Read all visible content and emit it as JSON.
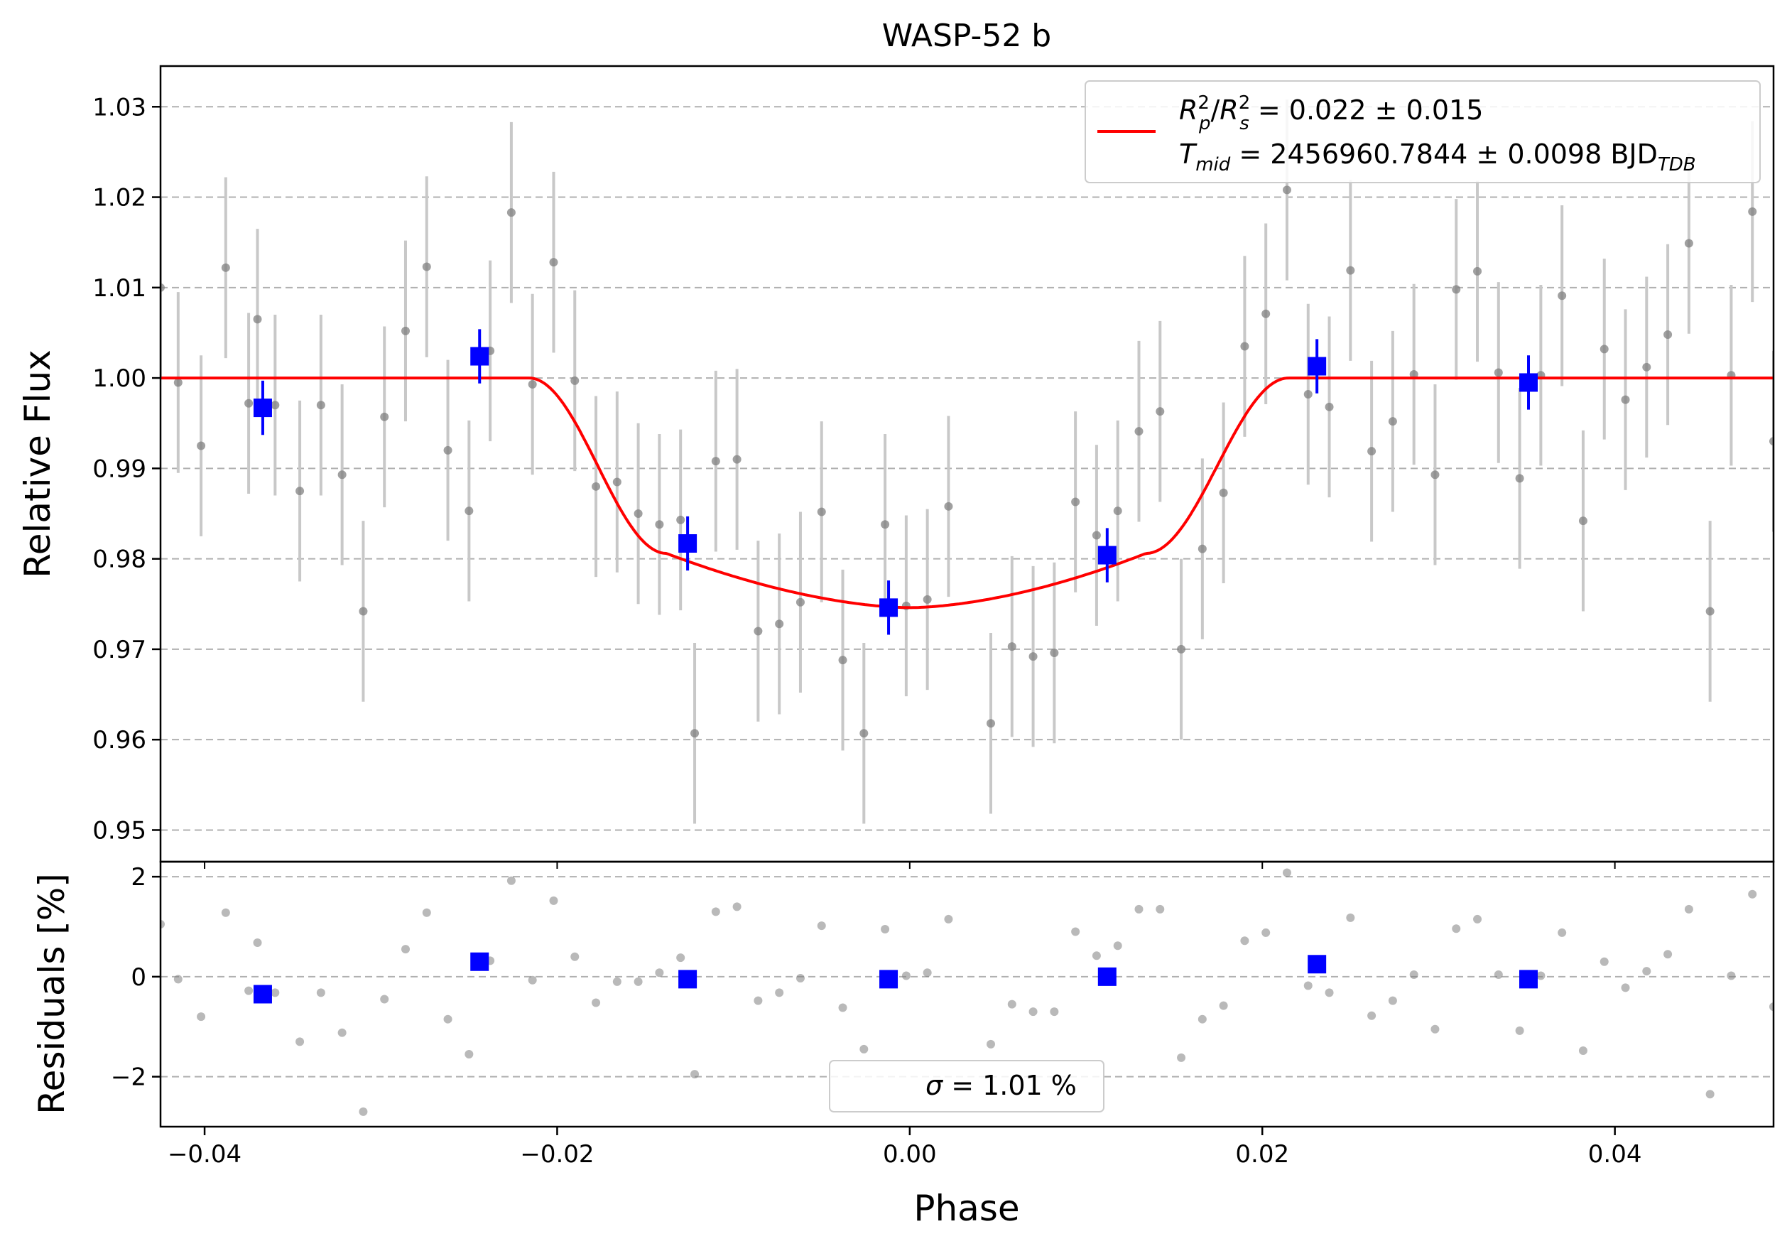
{
  "chart_data": [
    {
      "type": "scatter",
      "panel": "light-curve",
      "title": "WASP-52 b",
      "xlabel": "Phase",
      "ylabel": "Relative Flux",
      "xlim": [
        -0.0425,
        0.049
      ],
      "ylim": [
        0.9465,
        1.0345
      ],
      "yticks": [
        0.95,
        0.96,
        0.97,
        0.98,
        0.99,
        1.0,
        1.01,
        1.02,
        1.03
      ],
      "ytick_labels": [
        "0.95",
        "0.96",
        "0.97",
        "0.98",
        "0.99",
        "1.00",
        "1.01",
        "1.02",
        "1.03"
      ],
      "grid": "horizontal dashed",
      "legend": {
        "placement": "top-right",
        "line1_prefix": "R",
        "line1_text": "= 0.022 ± 0.015",
        "line2_prefix": "T",
        "line2_sub": "mid",
        "line2_text": "= 2456960.7844 ± 0.0098 BJD",
        "line2_unit_sub": "TDB"
      },
      "raw_error": 0.01,
      "raw": [
        [
          -0.0425,
          1.01
        ],
        [
          -0.0415,
          0.9995
        ],
        [
          -0.0402,
          0.9925
        ],
        [
          -0.0388,
          1.0122
        ],
        [
          -0.0375,
          0.9972
        ],
        [
          -0.037,
          1.0065
        ],
        [
          -0.036,
          0.997
        ],
        [
          -0.0346,
          0.9875
        ],
        [
          -0.0334,
          0.997
        ],
        [
          -0.0322,
          0.9893
        ],
        [
          -0.031,
          0.9742
        ],
        [
          -0.0298,
          0.9957
        ],
        [
          -0.0286,
          1.0052
        ],
        [
          -0.0274,
          1.0123
        ],
        [
          -0.0262,
          0.992
        ],
        [
          -0.025,
          0.9853
        ],
        [
          -0.0238,
          1.003
        ],
        [
          -0.0226,
          1.0183
        ],
        [
          -0.0214,
          0.9993
        ],
        [
          -0.0202,
          1.0128
        ],
        [
          -0.019,
          0.9997
        ],
        [
          -0.0178,
          0.988
        ],
        [
          -0.0166,
          0.9885
        ],
        [
          -0.0154,
          0.985
        ],
        [
          -0.0142,
          0.9838
        ],
        [
          -0.013,
          0.9843
        ],
        [
          -0.0122,
          0.9607
        ],
        [
          -0.011,
          0.9908
        ],
        [
          -0.0098,
          0.991
        ],
        [
          -0.0086,
          0.972
        ],
        [
          -0.0074,
          0.9728
        ],
        [
          -0.0062,
          0.9752
        ],
        [
          -0.005,
          0.9852
        ],
        [
          -0.0038,
          0.9688
        ],
        [
          -0.0026,
          0.9607
        ],
        [
          -0.0014,
          0.9838
        ],
        [
          -0.0002,
          0.9748
        ],
        [
          0.001,
          0.9755
        ],
        [
          0.0022,
          0.9858
        ],
        [
          0.0046,
          0.9618
        ],
        [
          0.0058,
          0.9703
        ],
        [
          0.007,
          0.9692
        ],
        [
          0.0082,
          0.9696
        ],
        [
          0.0094,
          0.9863
        ],
        [
          0.0106,
          0.9826
        ],
        [
          0.0118,
          0.9853
        ],
        [
          0.013,
          0.9941
        ],
        [
          0.0142,
          0.9963
        ],
        [
          0.0154,
          0.97
        ],
        [
          0.0166,
          0.9811
        ],
        [
          0.0178,
          0.9873
        ],
        [
          0.019,
          1.0035
        ],
        [
          0.0202,
          1.0071
        ],
        [
          0.0214,
          1.0208
        ],
        [
          0.0226,
          0.9982
        ],
        [
          0.0238,
          0.9968
        ],
        [
          0.025,
          1.0119
        ],
        [
          0.0262,
          0.9919
        ],
        [
          0.0274,
          0.9952
        ],
        [
          0.0286,
          1.0004
        ],
        [
          0.0298,
          0.9893
        ],
        [
          0.031,
          1.0098
        ],
        [
          0.0322,
          1.0118
        ],
        [
          0.0334,
          1.0006
        ],
        [
          0.0346,
          0.9889
        ],
        [
          0.0358,
          1.0003
        ],
        [
          0.037,
          1.0091
        ],
        [
          0.0382,
          0.9842
        ],
        [
          0.0394,
          1.0032
        ],
        [
          0.0406,
          0.9976
        ],
        [
          0.0418,
          1.0012
        ],
        [
          0.043,
          1.0048
        ],
        [
          0.0442,
          1.0149
        ],
        [
          0.0454,
          0.9742
        ],
        [
          0.0466,
          1.0003
        ],
        [
          0.0478,
          1.0184
        ],
        [
          0.049,
          0.993
        ]
      ],
      "binned": [
        {
          "x": -0.0367,
          "y": 0.9967,
          "err": 0.003
        },
        {
          "x": -0.0244,
          "y": 1.0024,
          "err": 0.003
        },
        {
          "x": -0.0126,
          "y": 0.9817,
          "err": 0.003
        },
        {
          "x": -0.0012,
          "y": 0.9746,
          "err": 0.003
        },
        {
          "x": 0.0112,
          "y": 0.9804,
          "err": 0.003
        },
        {
          "x": 0.0231,
          "y": 1.0013,
          "err": 0.003
        },
        {
          "x": 0.0351,
          "y": 0.9995,
          "err": 0.003
        }
      ],
      "model": {
        "name": "transit model",
        "baseline": 1.0,
        "ingress_start": -0.0216,
        "full_start": -0.0138,
        "full_end": 0.0134,
        "egress_end": 0.0215,
        "edge_depth": 0.0194,
        "center_depth": 0.0254
      },
      "colors": {
        "raw": "#808080",
        "raw_err": "#c8c8c8",
        "binned": "#0000ff",
        "model": "#ff0000",
        "grid": "#b0b0b0"
      }
    },
    {
      "type": "scatter",
      "panel": "residuals",
      "xlabel": "Phase",
      "ylabel": "Residuals [%]",
      "xlim": [
        -0.0425,
        0.049
      ],
      "ylim": [
        -3.0,
        2.3
      ],
      "yticks": [
        -2,
        0,
        2
      ],
      "ytick_labels": [
        "−2",
        "0",
        "2"
      ],
      "xticks": [
        -0.04,
        -0.02,
        0.0,
        0.02,
        0.04
      ],
      "xtick_labels": [
        "−0.04",
        "−0.02",
        "0.00",
        "0.02",
        "0.04"
      ],
      "grid": "horizontal dashed",
      "legend": {
        "placement": "bottom-center",
        "symbol": "σ",
        "text": "= 1.01 %"
      },
      "raw": [
        [
          -0.0425,
          1.05
        ],
        [
          -0.0415,
          -0.05
        ],
        [
          -0.0402,
          -0.8
        ],
        [
          -0.0388,
          1.28
        ],
        [
          -0.0375,
          -0.28
        ],
        [
          -0.037,
          0.68
        ],
        [
          -0.036,
          -0.32
        ],
        [
          -0.0346,
          -1.3
        ],
        [
          -0.0334,
          -0.32
        ],
        [
          -0.0322,
          -1.12
        ],
        [
          -0.031,
          -2.7
        ],
        [
          -0.0298,
          -0.45
        ],
        [
          -0.0286,
          0.55
        ],
        [
          -0.0274,
          1.28
        ],
        [
          -0.0262,
          -0.85
        ],
        [
          -0.025,
          -1.55
        ],
        [
          -0.0238,
          0.32
        ],
        [
          -0.0226,
          1.92
        ],
        [
          -0.0214,
          -0.07
        ],
        [
          -0.0202,
          1.52
        ],
        [
          -0.019,
          0.4
        ],
        [
          -0.0178,
          -0.52
        ],
        [
          -0.0166,
          -0.1
        ],
        [
          -0.0154,
          -0.1
        ],
        [
          -0.0142,
          0.08
        ],
        [
          -0.013,
          0.38
        ],
        [
          -0.0122,
          -1.95
        ],
        [
          -0.011,
          1.3
        ],
        [
          -0.0098,
          1.4
        ],
        [
          -0.0086,
          -0.48
        ],
        [
          -0.0074,
          -0.32
        ],
        [
          -0.0062,
          -0.03
        ],
        [
          -0.005,
          1.02
        ],
        [
          -0.0038,
          -0.62
        ],
        [
          -0.0026,
          -1.45
        ],
        [
          -0.0014,
          0.95
        ],
        [
          -0.0002,
          0.02
        ],
        [
          0.001,
          0.08
        ],
        [
          0.0022,
          1.15
        ],
        [
          0.0046,
          -1.35
        ],
        [
          0.0058,
          -0.55
        ],
        [
          0.007,
          -0.7
        ],
        [
          0.0082,
          -0.7
        ],
        [
          0.0094,
          0.9
        ],
        [
          0.0106,
          0.42
        ],
        [
          0.0118,
          0.62
        ],
        [
          0.013,
          1.35
        ],
        [
          0.0142,
          1.35
        ],
        [
          0.0154,
          -1.62
        ],
        [
          0.0166,
          -0.85
        ],
        [
          0.0178,
          -0.58
        ],
        [
          0.019,
          0.72
        ],
        [
          0.0202,
          0.88
        ],
        [
          0.0214,
          2.08
        ],
        [
          0.0226,
          -0.18
        ],
        [
          0.0238,
          -0.32
        ],
        [
          0.025,
          1.18
        ],
        [
          0.0262,
          -0.78
        ],
        [
          0.0274,
          -0.48
        ],
        [
          0.0286,
          0.04
        ],
        [
          0.0298,
          -1.05
        ],
        [
          0.031,
          0.96
        ],
        [
          0.0322,
          1.15
        ],
        [
          0.0334,
          0.04
        ],
        [
          0.0346,
          -1.08
        ],
        [
          0.0358,
          0.02
        ],
        [
          0.037,
          0.88
        ],
        [
          0.0382,
          -1.48
        ],
        [
          0.0394,
          0.3
        ],
        [
          0.0406,
          -0.22
        ],
        [
          0.0418,
          0.11
        ],
        [
          0.043,
          0.45
        ],
        [
          0.0442,
          1.35
        ],
        [
          0.0454,
          -2.35
        ],
        [
          0.0466,
          0.02
        ],
        [
          0.0478,
          1.65
        ],
        [
          0.049,
          -0.6
        ]
      ],
      "binned": [
        {
          "x": -0.0367,
          "y": -0.35
        },
        {
          "x": -0.0244,
          "y": 0.3
        },
        {
          "x": -0.0126,
          "y": -0.05
        },
        {
          "x": -0.0012,
          "y": -0.05
        },
        {
          "x": 0.0112,
          "y": 0.0
        },
        {
          "x": 0.0231,
          "y": 0.25
        },
        {
          "x": 0.0351,
          "y": -0.05
        }
      ]
    }
  ]
}
